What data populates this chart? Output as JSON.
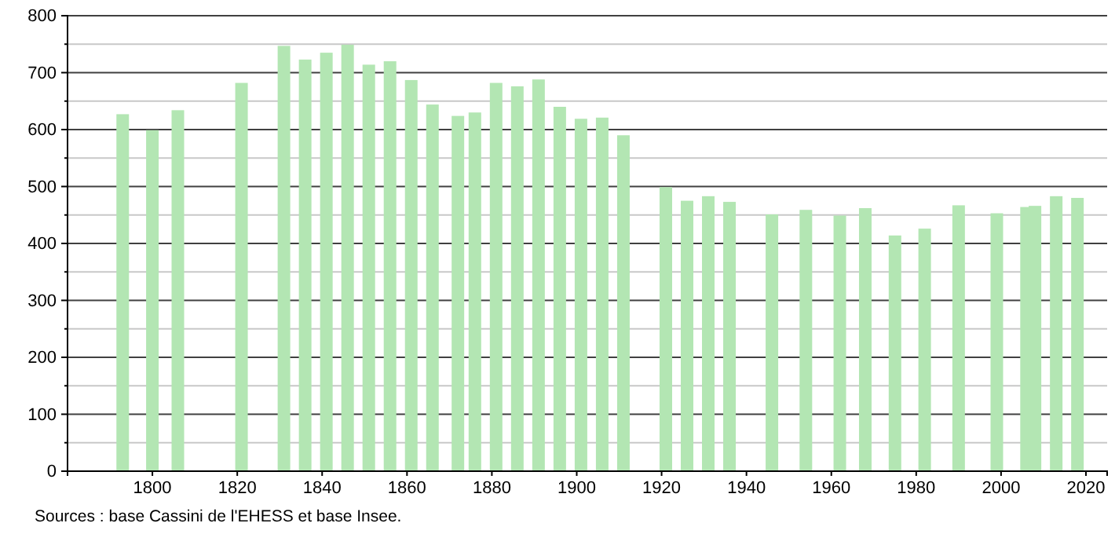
{
  "chart_data": {
    "type": "bar",
    "x": [
      1793,
      1800,
      1806,
      1821,
      1831,
      1836,
      1841,
      1846,
      1851,
      1856,
      1861,
      1866,
      1872,
      1876,
      1881,
      1886,
      1891,
      1896,
      1901,
      1906,
      1911,
      1921,
      1926,
      1931,
      1936,
      1946,
      1954,
      1962,
      1968,
      1975,
      1982,
      1990,
      1999,
      2006,
      2008,
      2013,
      2018
    ],
    "values": [
      627,
      599,
      634,
      682,
      747,
      723,
      735,
      749,
      714,
      720,
      687,
      644,
      624,
      630,
      682,
      676,
      688,
      640,
      619,
      621,
      590,
      499,
      475,
      483,
      473,
      451,
      459,
      449,
      462,
      414,
      426,
      467,
      453,
      464,
      466,
      483,
      480
    ],
    "color": "#b3e6b3",
    "xlim": [
      1780,
      2025
    ],
    "xticks": [
      1800,
      1820,
      1840,
      1860,
      1880,
      1900,
      1920,
      1940,
      1960,
      1980,
      2000,
      2020
    ],
    "ylim": [
      0,
      800
    ],
    "yticks": [
      0,
      {
        "value": 50,
        "label": null
      },
      100,
      {
        "value": 150,
        "label": null
      },
      200,
      {
        "value": 250,
        "label": null
      },
      300,
      {
        "value": 350,
        "label": null
      },
      400,
      {
        "value": 450,
        "label": null
      },
      500,
      {
        "value": 550,
        "label": null
      },
      600,
      {
        "value": 650,
        "label": null
      },
      700,
      {
        "value": 750,
        "label": null
      },
      800
    ],
    "grid": "y",
    "annotations": [
      "Sources : base Cassini de l'EHESS et base Insee."
    ]
  }
}
